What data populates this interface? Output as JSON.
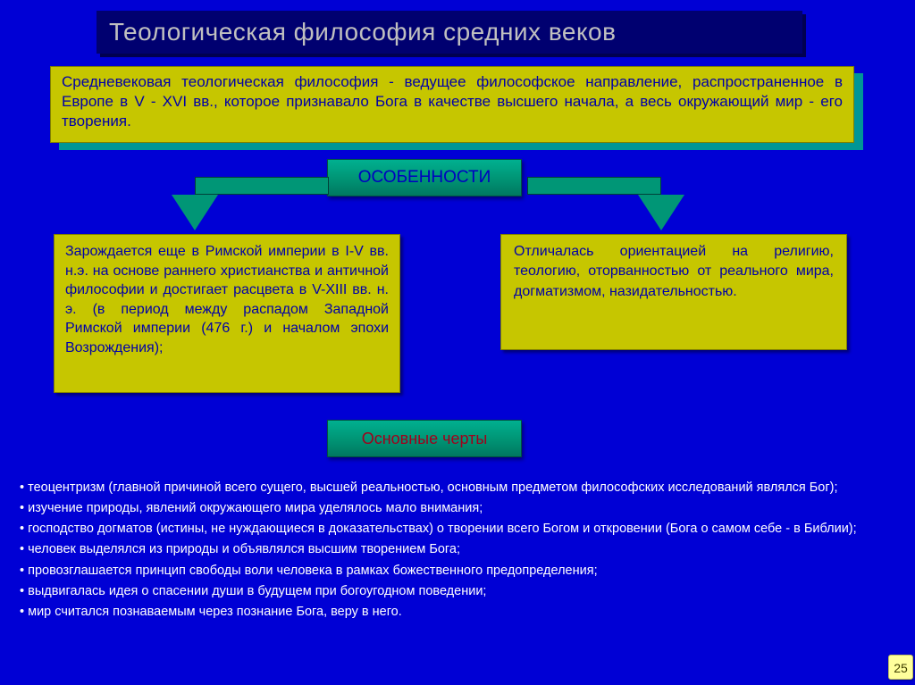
{
  "colors": {
    "page_bg": "#0000d5",
    "title_bg": "#000070",
    "title_text": "#c0c0c0",
    "box_bg": "#c6c600",
    "box_text": "#0000a8",
    "teal": "#009676",
    "traits_label_text": "#a0001c",
    "bullet_text": "#ffffff",
    "pagenum_bg": "#ffff9c"
  },
  "title": "Теологическая философия средних веков",
  "intro": "Средневековая теологическая философия - ведущее философское направление, распространенное в Европе в V - XVI вв., которое признавало Бога в качестве высшего начала, а весь окружающий мир - его творения.",
  "features_label": "ОСОБЕННОСТИ",
  "feature_left": "Зарождается еще в Римской империи в Ι-V вв. н.э. на основе раннего христианства и античной философии и достигает расцвета в V-XIII вв. н. э. (в период между распадом Западной Римской империи (476 г.) и началом эпохи Возрождения);",
  "feature_right": "Отличалась ориентацией на религию, теологию, оторванностью от реального мира, догматизмом, назидательностью.",
  "traits_label": "Основные черты",
  "traits": [
    "теоцентризм (главной причиной всего сущего, высшей реальностью, основным предметом философских исследований являлся Бог);",
    "изучение природы, явлений окружающего мира уделялось мало внимания;",
    "господство догматов (истины, не нуждающиеся в доказательствах) о творении всего Богом и откровении (Бога о самом себе - в Библии);",
    "человек выделялся из природы и объявлялся высшим творением Бога;",
    "провозглашается принцип свободы воли человека в рамках божественного предопределения;",
    "выдвигалась идея о спасении души в будущем при богоугодном поведении;",
    "мир считался познаваемым через познание Бога, веру в него."
  ],
  "page_number": "25"
}
